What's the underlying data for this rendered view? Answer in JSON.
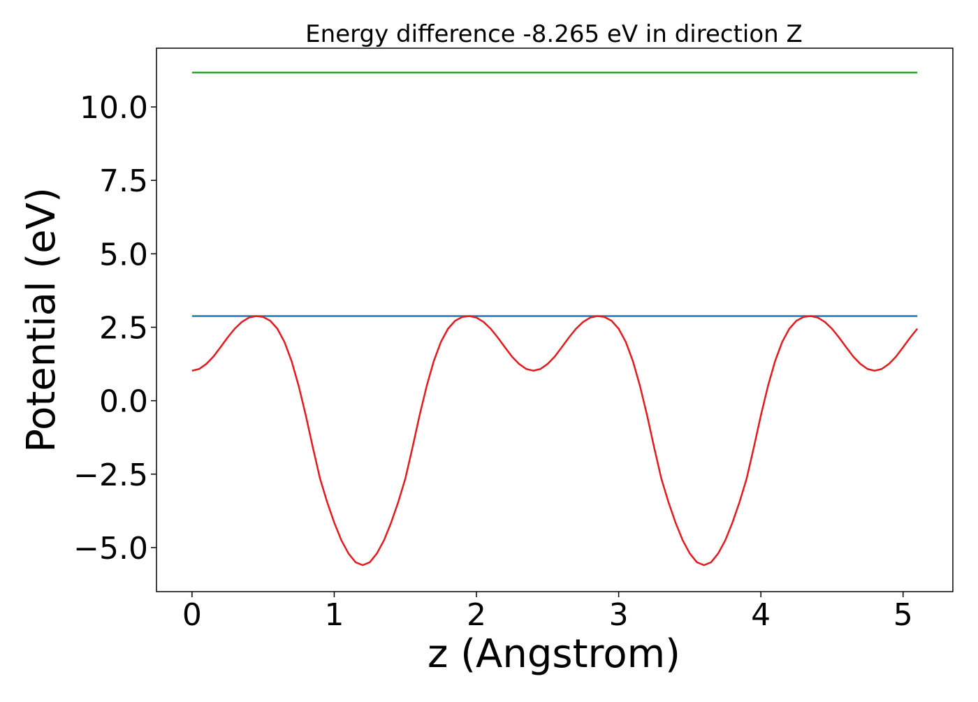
{
  "chart_data": {
    "type": "line",
    "title": "Energy difference -8.265 eV in direction Z",
    "xlabel": "z (Angstrom)",
    "ylabel": "Potential (eV)",
    "xlim": [
      -0.25,
      5.35
    ],
    "ylim": [
      -6.5,
      12.0
    ],
    "xticks": [
      0,
      1,
      2,
      3,
      4,
      5
    ],
    "xtick_labels": [
      "0",
      "1",
      "2",
      "3",
      "4",
      "5"
    ],
    "yticks": [
      -5.0,
      -2.5,
      0.0,
      2.5,
      5.0,
      7.5,
      10.0
    ],
    "ytick_labels": [
      "−5.0",
      "−2.5",
      "0.0",
      "2.5",
      "5.0",
      "7.5",
      "10.0"
    ],
    "grid": false,
    "series": [
      {
        "color": "#2ca02c",
        "x": [
          0.0,
          5.1
        ],
        "y": [
          11.17,
          11.17
        ]
      },
      {
        "color": "#1f77b4",
        "x": [
          0.0,
          5.1
        ],
        "y": [
          2.88,
          2.88
        ]
      },
      {
        "color": "#e41a1c",
        "x": [
          0.0,
          0.05,
          0.1,
          0.15,
          0.2,
          0.25,
          0.3,
          0.35,
          0.4,
          0.45,
          0.5,
          0.55,
          0.6,
          0.65,
          0.7,
          0.75,
          0.8,
          0.85,
          0.9,
          0.95,
          1.0,
          1.05,
          1.1,
          1.15,
          1.2,
          1.25,
          1.3,
          1.35,
          1.4,
          1.45,
          1.5,
          1.55,
          1.6,
          1.65,
          1.7,
          1.75,
          1.8,
          1.85,
          1.9,
          1.95,
          2.0,
          2.05,
          2.1,
          2.15,
          2.2,
          2.25,
          2.3,
          2.35,
          2.4,
          2.45,
          2.5,
          2.55,
          2.6,
          2.65,
          2.7,
          2.75,
          2.8,
          2.85,
          2.9,
          2.95,
          3.0,
          3.05,
          3.1,
          3.15,
          3.2,
          3.25,
          3.3,
          3.35,
          3.4,
          3.45,
          3.5,
          3.55,
          3.6,
          3.65,
          3.7,
          3.75,
          3.8,
          3.85,
          3.9,
          3.95,
          4.0,
          4.05,
          4.1,
          4.15,
          4.2,
          4.25,
          4.3,
          4.35,
          4.4,
          4.45,
          4.5,
          4.55,
          4.6,
          4.65,
          4.7,
          4.75,
          4.8,
          4.85,
          4.9,
          4.95,
          5.0,
          5.05,
          5.1
        ],
        "y": [
          1.02,
          1.08,
          1.25,
          1.5,
          1.82,
          2.15,
          2.45,
          2.68,
          2.83,
          2.88,
          2.85,
          2.72,
          2.45,
          2.0,
          1.35,
          0.5,
          -0.5,
          -1.6,
          -2.65,
          -3.45,
          -4.15,
          -4.75,
          -5.2,
          -5.5,
          -5.6,
          -5.5,
          -5.2,
          -4.75,
          -4.15,
          -3.45,
          -2.65,
          -1.6,
          -0.5,
          0.5,
          1.35,
          2.0,
          2.45,
          2.72,
          2.85,
          2.88,
          2.83,
          2.68,
          2.45,
          2.15,
          1.82,
          1.5,
          1.25,
          1.08,
          1.02,
          1.08,
          1.25,
          1.5,
          1.82,
          2.15,
          2.45,
          2.68,
          2.83,
          2.88,
          2.85,
          2.72,
          2.45,
          2.0,
          1.35,
          0.5,
          -0.5,
          -1.6,
          -2.65,
          -3.45,
          -4.15,
          -4.75,
          -5.2,
          -5.5,
          -5.6,
          -5.5,
          -5.2,
          -4.75,
          -4.15,
          -3.45,
          -2.65,
          -1.6,
          -0.5,
          0.5,
          1.35,
          2.0,
          2.45,
          2.72,
          2.85,
          2.88,
          2.83,
          2.68,
          2.45,
          2.15,
          1.82,
          1.5,
          1.25,
          1.08,
          1.02,
          1.08,
          1.25,
          1.5,
          1.82,
          2.15,
          2.45
        ]
      }
    ]
  }
}
